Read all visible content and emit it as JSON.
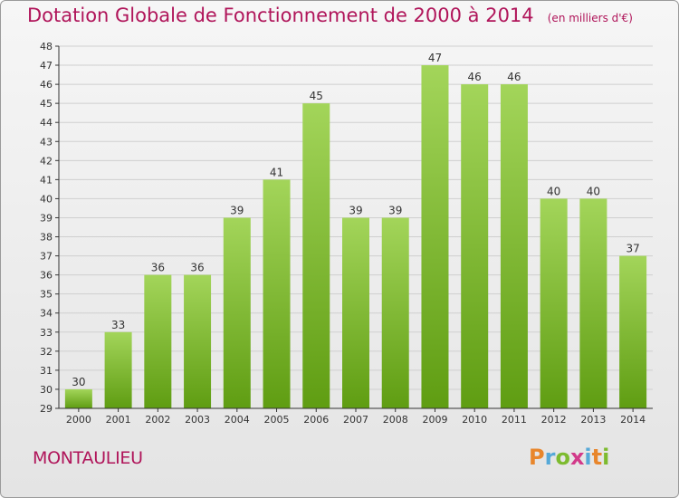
{
  "header": {
    "title": "Dotation Globale de Fonctionnement de 2000 à 2014",
    "subtitle": "(en milliers d'€)"
  },
  "footer": {
    "commune": "MONTAULIEU",
    "logo_text": "Proxiti"
  },
  "colors": {
    "bar_top": "#a3d55a",
    "bar_bottom": "#5f9d12",
    "title": "#b0155a",
    "grid": "#cfcfcf",
    "axis": "#333333"
  },
  "chart_data": {
    "type": "bar",
    "title": "Dotation Globale de Fonctionnement de 2000 à 2014",
    "subtitle": "(en milliers d'€)",
    "xlabel": "",
    "ylabel": "",
    "categories": [
      "2000",
      "2001",
      "2002",
      "2003",
      "2004",
      "2005",
      "2006",
      "2007",
      "2008",
      "2009",
      "2010",
      "2011",
      "2012",
      "2013",
      "2014"
    ],
    "values": [
      30,
      33,
      36,
      36,
      39,
      41,
      45,
      39,
      39,
      47,
      46,
      46,
      40,
      40,
      37
    ],
    "ylim": [
      29,
      48
    ],
    "yticks": [
      29,
      30,
      31,
      32,
      33,
      34,
      35,
      36,
      37,
      38,
      39,
      40,
      41,
      42,
      43,
      44,
      45,
      46,
      47,
      48
    ],
    "grid": true,
    "legend": "none",
    "data_labels": true
  }
}
